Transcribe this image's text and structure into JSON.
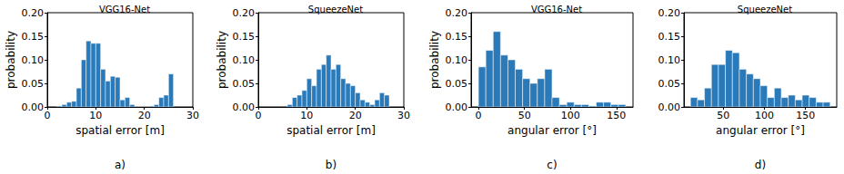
{
  "chart_data": [
    {
      "type": "histogram",
      "title": "VGG16-Net",
      "xlabel": "spatial error [m]",
      "ylabel": "probability",
      "annotation": "a)",
      "color": "#2a7ab9",
      "bins": [
        2,
        3,
        4,
        5,
        6,
        7,
        8,
        9,
        10,
        11,
        12,
        13,
        14,
        15,
        16,
        17,
        18,
        19,
        20,
        21,
        22,
        23,
        24,
        25,
        26
      ],
      "values": [
        0.002,
        0.005,
        0.01,
        0.012,
        0.04,
        0.1,
        0.14,
        0.135,
        0.135,
        0.08,
        0.055,
        0.065,
        0.063,
        0.015,
        0.02,
        0.005,
        0,
        0,
        0,
        0.002,
        0.005,
        0.02,
        0.025,
        0.07
      ],
      "xlim": [
        0,
        30
      ],
      "xticks": [
        0,
        10,
        20,
        30
      ],
      "ylim": [
        0,
        0.2
      ],
      "yticks": [
        {
          "value": 0,
          "label": "0.00"
        },
        {
          "value": 0.05,
          "label": "0.05"
        },
        {
          "value": 0.1,
          "label": "0.10"
        },
        {
          "value": 0.15,
          "label": "0.15"
        },
        {
          "value": 0.2,
          "label": "0.20"
        }
      ]
    },
    {
      "type": "histogram",
      "title": "SqueezeNet",
      "xlabel": "spatial error [m]",
      "ylabel": "probability",
      "annotation": "b)",
      "color": "#2a7ab9",
      "bins": [
        6,
        7,
        8,
        9,
        10,
        11,
        12,
        13,
        14,
        15,
        16,
        17,
        18,
        19,
        20,
        21,
        22,
        23,
        24,
        25,
        26,
        27
      ],
      "values": [
        0.005,
        0.02,
        0.025,
        0.035,
        0.06,
        0.045,
        0.08,
        0.09,
        0.11,
        0.08,
        0.09,
        0.06,
        0.05,
        0.045,
        0.03,
        0.015,
        0.01,
        0.005,
        0.015,
        0.03,
        0.025
      ],
      "xlim": [
        0,
        30
      ],
      "xticks": [
        0,
        10,
        20,
        30
      ],
      "ylim": [
        0,
        0.2
      ],
      "yticks": [
        {
          "value": 0,
          "label": "0.00"
        },
        {
          "value": 0.05,
          "label": "0.05"
        },
        {
          "value": 0.1,
          "label": "0.10"
        },
        {
          "value": 0.15,
          "label": "0.15"
        },
        {
          "value": 0.2,
          "label": "0.20"
        }
      ]
    },
    {
      "type": "histogram",
      "title": "VGG16-Net",
      "xlabel": "angular error [°]",
      "ylabel": "probability",
      "annotation": "c)",
      "color": "#2a7ab9",
      "bins": [
        0,
        8,
        16,
        24,
        32,
        40,
        48,
        56,
        64,
        72,
        80,
        88,
        96,
        104,
        112,
        120,
        128,
        136,
        144,
        152,
        160
      ],
      "values": [
        0.085,
        0.12,
        0.16,
        0.11,
        0.1,
        0.08,
        0.06,
        0.05,
        0.06,
        0.08,
        0.02,
        0.005,
        0.01,
        0.005,
        0.005,
        0.002,
        0.01,
        0.01,
        0.005,
        0.005
      ],
      "xlim": [
        -8,
        168
      ],
      "xticks": [
        0,
        50,
        100,
        150
      ],
      "ylim": [
        0,
        0.2
      ],
      "yticks": [
        {
          "value": 0,
          "label": "0.00"
        },
        {
          "value": 0.05,
          "label": "0.05"
        },
        {
          "value": 0.1,
          "label": "0.10"
        },
        {
          "value": 0.15,
          "label": "0.15"
        },
        {
          "value": 0.2,
          "label": "0.20"
        }
      ]
    },
    {
      "type": "histogram",
      "title": "SqueezeNet",
      "xlabel": "angular error [°]",
      "annotation": "d)",
      "color": "#2a7ab9",
      "bins": [
        10,
        18.5,
        27,
        35.5,
        44,
        52.5,
        61,
        69.5,
        78,
        86.5,
        95,
        103.5,
        112,
        120.5,
        129,
        137.5,
        146,
        154.5,
        163,
        171.5,
        180
      ],
      "values": [
        0.02,
        0.015,
        0.04,
        0.09,
        0.09,
        0.12,
        0.115,
        0.08,
        0.07,
        0.06,
        0.045,
        0.02,
        0.04,
        0.02,
        0.025,
        0.015,
        0.025,
        0.02,
        0.01,
        0.01
      ],
      "xlim": [
        2,
        188
      ],
      "xticks": [
        50,
        100,
        150
      ],
      "ylim": [
        0,
        0.2
      ],
      "yticks": [
        {
          "value": 0,
          "label": "0.00"
        },
        {
          "value": 0.05,
          "label": "0.05"
        },
        {
          "value": 0.1,
          "label": "0.10"
        },
        {
          "value": 0.15,
          "label": "0.15"
        },
        {
          "value": 0.2,
          "label": "0.20"
        }
      ]
    }
  ]
}
